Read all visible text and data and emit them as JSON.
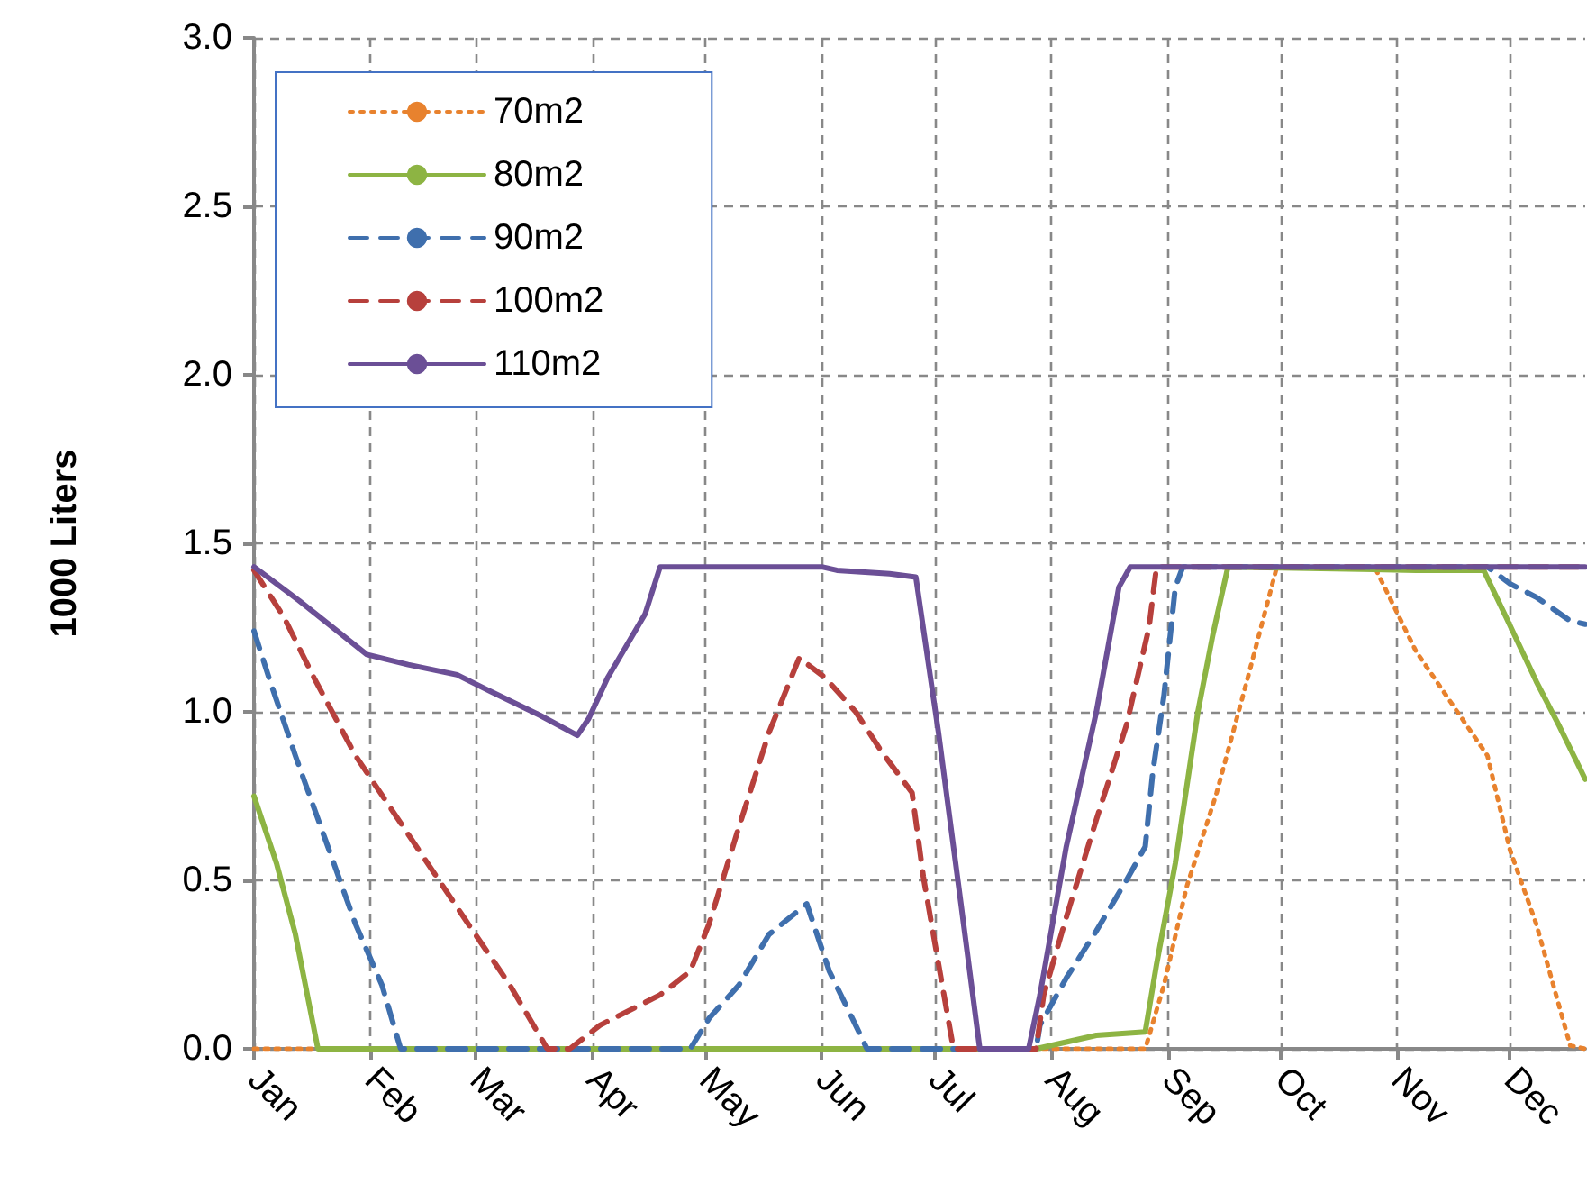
{
  "chart_data": {
    "type": "line",
    "ylabel": "1000 Liters",
    "xlim": [
      "--01-01",
      "--12-21"
    ],
    "ylim": [
      0,
      3
    ],
    "xticks": [
      {
        "value": "--01-01",
        "label": "Jan"
      },
      {
        "value": "--02-01",
        "label": "Feb"
      },
      {
        "value": "--03-01",
        "label": "Mar"
      },
      {
        "value": "--04-01",
        "label": "Apr"
      },
      {
        "value": "--05-01",
        "label": "May"
      },
      {
        "value": "--06-01",
        "label": "Jun"
      },
      {
        "value": "--07-01",
        "label": "Jul"
      },
      {
        "value": "--08-01",
        "label": "Aug"
      },
      {
        "value": "--09-01",
        "label": "Sep"
      },
      {
        "value": "--10-01",
        "label": "Oct"
      },
      {
        "value": "--11-01",
        "label": "Nov"
      },
      {
        "value": "--12-01",
        "label": "Dec"
      }
    ],
    "yticks": [
      {
        "value": 0,
        "label": "0.0"
      },
      {
        "value": 0.5,
        "label": "0.5"
      },
      {
        "value": 1,
        "label": "1.0"
      },
      {
        "value": 1.5,
        "label": "1.5"
      },
      {
        "value": 2,
        "label": "2.0"
      },
      {
        "value": 2.5,
        "label": "2.5"
      },
      {
        "value": 3,
        "label": "3.0"
      }
    ],
    "grid": true,
    "legend": "top left",
    "marker": "none",
    "series": [
      {
        "name": "70m2",
        "color": "#e8822e",
        "line_style": "dotted",
        "x": [
          "--01-01",
          "--08-26",
          "--08-31",
          "--09-06",
          "--09-14",
          "--09-22",
          "--09-30",
          "--10-26",
          "--11-06",
          "--11-17",
          "--11-25",
          "--12-01",
          "--12-08",
          "--12-17",
          "--12-21"
        ],
        "values": [
          0,
          0,
          0.19,
          0.48,
          0.76,
          1.09,
          1.43,
          1.43,
          1.18,
          1.0,
          0.87,
          0.59,
          0.37,
          0.01,
          0
        ]
      },
      {
        "name": "80m2",
        "color": "#8db443",
        "line_style": "solid",
        "x": [
          "--01-01",
          "--01-07",
          "--01-12",
          "--01-18",
          "--07-28",
          "--08-05",
          "--08-13",
          "--08-26",
          "--08-29",
          "--09-03",
          "--09-09",
          "--09-13",
          "--09-17",
          "--11-06",
          "--11-24",
          "--11-30",
          "--12-08",
          "--12-14",
          "--12-21"
        ],
        "values": [
          0.75,
          0.55,
          0.34,
          0,
          0,
          0.02,
          0.04,
          0.05,
          0.25,
          0.55,
          1.0,
          1.23,
          1.43,
          1.42,
          1.42,
          1.28,
          1.09,
          0.96,
          0.8
        ]
      },
      {
        "name": "90m2",
        "color": "#3f6fad",
        "line_style": "dashed",
        "x": [
          "--01-01",
          "--01-05",
          "--01-12",
          "--01-20",
          "--01-28",
          "--02-04",
          "--02-09",
          "--04-27",
          "--05-02",
          "--05-10",
          "--05-18",
          "--05-28",
          "--06-03",
          "--06-10",
          "--06-13",
          "--07-28",
          "--07-29",
          "--08-05",
          "--08-13",
          "--08-21",
          "--08-26",
          "--08-28",
          "--08-31",
          "--09-03",
          "--09-05",
          "--11-25",
          "--12-01",
          "--12-08",
          "--12-17",
          "--12-21"
        ],
        "values": [
          1.24,
          1.1,
          0.87,
          0.62,
          0.37,
          0.19,
          0,
          0,
          0.09,
          0.19,
          0.34,
          0.43,
          0.23,
          0.07,
          0,
          0,
          0.07,
          0.21,
          0.35,
          0.5,
          0.6,
          0.82,
          1.05,
          1.37,
          1.43,
          1.43,
          1.38,
          1.34,
          1.27,
          1.26
        ]
      },
      {
        "name": "100m2",
        "color": "#b7403c",
        "line_style": "dashed",
        "x": [
          "--01-01",
          "--01-09",
          "--01-17",
          "--01-28",
          "--02-12",
          "--02-27",
          "--03-10",
          "--03-20",
          "--03-26",
          "--04-03",
          "--04-19",
          "--04-27",
          "--05-02",
          "--05-10",
          "--05-18",
          "--05-26",
          "--06-02",
          "--06-10",
          "--06-17",
          "--06-25",
          "--06-28",
          "--07-03",
          "--07-06",
          "--07-28",
          "--07-30",
          "--08-05",
          "--08-13",
          "--08-21",
          "--08-27",
          "--08-29",
          "--12-21"
        ],
        "values": [
          1.42,
          1.28,
          1.1,
          0.87,
          0.62,
          0.37,
          0.19,
          0,
          0,
          0.07,
          0.16,
          0.23,
          0.37,
          0.66,
          0.94,
          1.16,
          1.1,
          1.0,
          0.88,
          0.76,
          0.51,
          0.19,
          0,
          0,
          0.16,
          0.39,
          0.68,
          0.96,
          1.25,
          1.43,
          1.43
        ]
      },
      {
        "name": "110m2",
        "color": "#6b4f96",
        "line_style": "solid",
        "x": [
          "--01-01",
          "--01-13",
          "--01-31",
          "--02-11",
          "--02-24",
          "--03-05",
          "--03-18",
          "--03-28",
          "--03-31",
          "--04-05",
          "--04-15",
          "--04-19",
          "--06-01",
          "--06-05",
          "--06-19",
          "--06-26",
          "--07-02",
          "--07-08",
          "--07-13",
          "--07-26",
          "--07-29",
          "--08-05",
          "--08-13",
          "--08-19",
          "--08-22",
          "--12-21"
        ],
        "values": [
          1.43,
          1.33,
          1.17,
          1.14,
          1.11,
          1.06,
          0.99,
          0.93,
          0.98,
          1.1,
          1.29,
          1.43,
          1.43,
          1.42,
          1.41,
          1.4,
          0.94,
          0.43,
          0,
          0,
          0.16,
          0.6,
          1.0,
          1.37,
          1.43,
          1.43
        ]
      }
    ]
  }
}
